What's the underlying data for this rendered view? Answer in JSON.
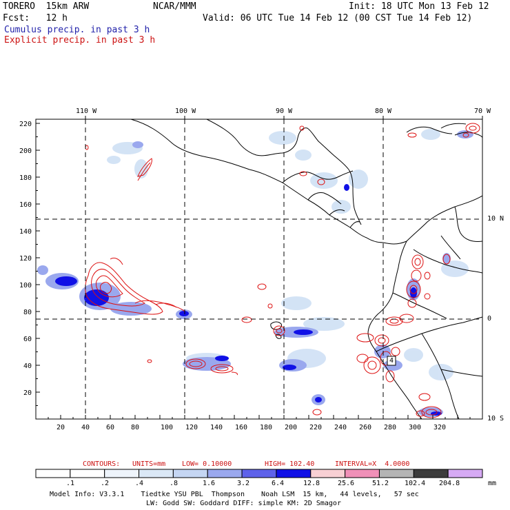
{
  "header": {
    "model": "TORERO  15km ARW",
    "org": "NCAR/MMM",
    "init": "Init: 18 UTC Mon 13 Feb 12",
    "fcst": "Fcst:   12 h",
    "valid": "Valid: 06 UTC Tue 14 Feb 12 (00 CST Tue 14 Feb 12)",
    "field1": "Cumulus precip. in past 3 h",
    "field2": "Explicit precip. in past 3 h"
  },
  "axes": {
    "x_ticks": [
      "20",
      "40",
      "60",
      "80",
      "100",
      "120",
      "140",
      "160",
      "180",
      "200",
      "220",
      "240",
      "260",
      "280",
      "300",
      "320"
    ],
    "y_ticks": [
      "20",
      "40",
      "60",
      "80",
      "100",
      "120",
      "140",
      "160",
      "180",
      "200",
      "220"
    ],
    "lon_labels": [
      "110 W",
      "100 W",
      "90 W",
      "80 W",
      "70 W"
    ],
    "lat_labels": [
      "10 N",
      "0",
      "10 S"
    ]
  },
  "contour_info": {
    "label": "CONTOURS:",
    "units": "UNITS=mm",
    "low": "LOW= 0.10000",
    "high": "HIGH= 102.40",
    "interval": "INTERVAL=X  4.0000"
  },
  "colorbar": {
    "values": [
      ".1",
      ".2",
      ".4",
      ".8",
      "1.6",
      "3.2",
      "6.4",
      "12.8",
      "25.6",
      "51.2",
      "102.4",
      "204.8"
    ],
    "unit": "mm",
    "colors": [
      "#ffffff",
      "#ffffff",
      "#eef4fb",
      "#dbe8f6",
      "#c5d6f3",
      "#9aa8ee",
      "#5e62ea",
      "#1010e6",
      "#f8d0d4",
      "#f090b8",
      "#b4b4b4",
      "#3c3c3c",
      "#d6aaf4"
    ]
  },
  "footer": {
    "line1": "Model Info: V3.3.1    Tiedtke YSU PBL  Thompson    Noah LSM  15 km,   44 levels,   57 sec",
    "line2": "LW: Godd SW: Goddard DIFF: simple KM: 2D Smagor"
  },
  "map_labels": {
    "inner_label": "4"
  }
}
